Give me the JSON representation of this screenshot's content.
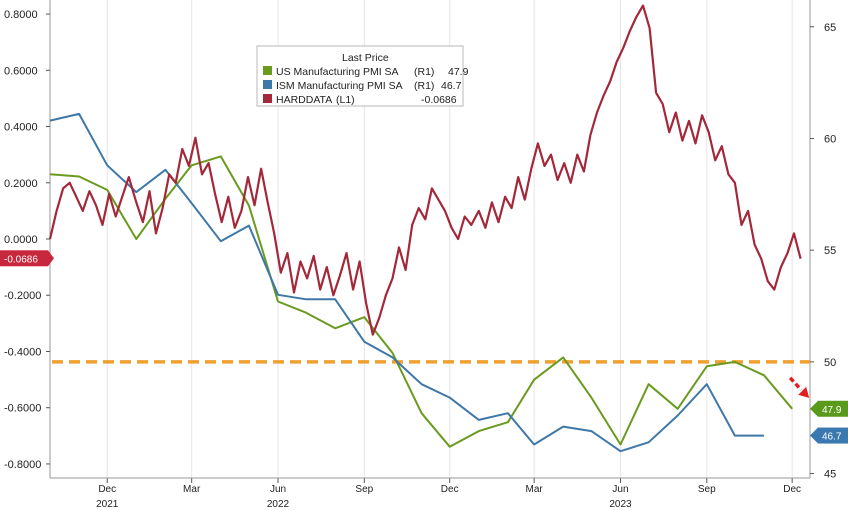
{
  "chart_data": {
    "type": "line",
    "legend": {
      "title": "Last Price",
      "placement": "top-center",
      "entries": [
        {
          "label": "US Manufacturing PMI SA",
          "axis": "(R1)",
          "value": "47.9",
          "color": "#6a9a1f"
        },
        {
          "label": "ISM Manufacturing PMI SA",
          "axis": "(R1)",
          "value": "46.7",
          "color": "#3f78a8"
        },
        {
          "label": "HARDDATA",
          "axis": "(L1)",
          "value": "-0.0686",
          "color": "#a3283a"
        }
      ]
    },
    "left_axis": {
      "ylim": [
        -0.85,
        0.85
      ],
      "ticks": [
        "0.8000",
        "0.6000",
        "0.4000",
        "0.2000",
        "0.0000",
        "-0.2000",
        "-0.4000",
        "-0.6000",
        "-0.8000"
      ],
      "tick_values": [
        0.8,
        0.6,
        0.4,
        0.2,
        0.0,
        -0.2,
        -0.4,
        -0.6,
        -0.8
      ]
    },
    "right_axis": {
      "ylim": [
        44.8,
        66.2
      ],
      "ticks": [
        "65",
        "60",
        "55",
        "50",
        "45"
      ],
      "tick_values": [
        65,
        60,
        55,
        50,
        45
      ]
    },
    "x_axis": {
      "xlim": [
        "2021-10-01",
        "2023-12-20"
      ],
      "month_ticks": [
        {
          "date": "2021-12-01",
          "label": "Dec"
        },
        {
          "date": "2022-03-01",
          "label": "Mar"
        },
        {
          "date": "2022-06-01",
          "label": "Jun"
        },
        {
          "date": "2022-09-01",
          "label": "Sep"
        },
        {
          "date": "2022-12-01",
          "label": "Dec"
        },
        {
          "date": "2023-03-01",
          "label": "Mar"
        },
        {
          "date": "2023-06-01",
          "label": "Jun"
        },
        {
          "date": "2023-09-01",
          "label": "Sep"
        },
        {
          "date": "2023-12-01",
          "label": "Dec"
        }
      ],
      "year_labels": [
        {
          "date": "2021-12-01",
          "label": "2021"
        },
        {
          "date": "2022-06-01",
          "label": "2022"
        },
        {
          "date": "2023-06-01",
          "label": "2023"
        }
      ]
    },
    "reference_line": {
      "axis": "right",
      "value": 50,
      "color": "#f0a030",
      "style": "dashed"
    },
    "trend_arrow": {
      "color": "#e02020",
      "direction": "down"
    },
    "value_tags": [
      {
        "axis": "left",
        "value": -0.0686,
        "text": "-0.0686",
        "color": "#c8283c"
      },
      {
        "axis": "right",
        "value": 47.9,
        "text": "47.9",
        "color": "#5a9a1a"
      },
      {
        "axis": "right",
        "value": 46.7,
        "text": "46.7",
        "color": "#3a78b0"
      }
    ],
    "grid": {
      "vertical": true,
      "horizontal": false
    },
    "series": [
      {
        "name": "US Manufacturing PMI SA",
        "axis": "right",
        "color": "#6a9a1f",
        "points": [
          [
            "2021-10-01",
            58.4
          ],
          [
            "2021-11-01",
            58.3
          ],
          [
            "2021-12-01",
            57.7
          ],
          [
            "2022-01-01",
            55.5
          ],
          [
            "2022-02-01",
            57.3
          ],
          [
            "2022-03-01",
            58.8
          ],
          [
            "2022-04-01",
            59.2
          ],
          [
            "2022-05-01",
            57.0
          ],
          [
            "2022-06-01",
            52.7
          ],
          [
            "2022-07-01",
            52.2
          ],
          [
            "2022-08-01",
            51.5
          ],
          [
            "2022-09-01",
            52.0
          ],
          [
            "2022-10-01",
            50.4
          ],
          [
            "2022-11-01",
            47.7
          ],
          [
            "2022-12-01",
            46.2
          ],
          [
            "2023-01-01",
            46.9
          ],
          [
            "2023-02-01",
            47.3
          ],
          [
            "2023-03-01",
            49.2
          ],
          [
            "2023-04-01",
            50.2
          ],
          [
            "2023-05-01",
            48.4
          ],
          [
            "2023-06-01",
            46.3
          ],
          [
            "2023-07-01",
            49.0
          ],
          [
            "2023-08-01",
            47.9
          ],
          [
            "2023-09-01",
            49.8
          ],
          [
            "2023-10-01",
            50.0
          ],
          [
            "2023-11-01",
            49.4
          ],
          [
            "2023-12-01",
            47.9
          ]
        ]
      },
      {
        "name": "ISM Manufacturing PMI SA",
        "axis": "right",
        "color": "#3f78a8",
        "points": [
          [
            "2021-10-01",
            60.8
          ],
          [
            "2021-11-01",
            61.1
          ],
          [
            "2021-12-01",
            58.8
          ],
          [
            "2022-01-01",
            57.6
          ],
          [
            "2022-02-01",
            58.6
          ],
          [
            "2022-03-01",
            57.1
          ],
          [
            "2022-04-01",
            55.4
          ],
          [
            "2022-05-01",
            56.1
          ],
          [
            "2022-06-01",
            53.0
          ],
          [
            "2022-07-01",
            52.8
          ],
          [
            "2022-08-01",
            52.8
          ],
          [
            "2022-09-01",
            50.9
          ],
          [
            "2022-10-01",
            50.2
          ],
          [
            "2022-11-01",
            49.0
          ],
          [
            "2022-12-01",
            48.4
          ],
          [
            "2023-01-01",
            47.4
          ],
          [
            "2023-02-01",
            47.7
          ],
          [
            "2023-03-01",
            46.3
          ],
          [
            "2023-04-01",
            47.1
          ],
          [
            "2023-05-01",
            46.9
          ],
          [
            "2023-06-01",
            46.0
          ],
          [
            "2023-07-01",
            46.4
          ],
          [
            "2023-08-01",
            47.6
          ],
          [
            "2023-09-01",
            49.0
          ],
          [
            "2023-10-01",
            46.7
          ],
          [
            "2023-11-01",
            46.7
          ]
        ]
      },
      {
        "name": "HARDDATA",
        "axis": "left",
        "color": "#a3283a",
        "points": [
          [
            "2021-10-01",
            0.0
          ],
          [
            "2021-10-08",
            0.1
          ],
          [
            "2021-10-15",
            0.18
          ],
          [
            "2021-10-22",
            0.2
          ],
          [
            "2021-10-29",
            0.15
          ],
          [
            "2021-11-05",
            0.1
          ],
          [
            "2021-11-12",
            0.17
          ],
          [
            "2021-11-19",
            0.12
          ],
          [
            "2021-11-26",
            0.05
          ],
          [
            "2021-12-03",
            0.16
          ],
          [
            "2021-12-10",
            0.08
          ],
          [
            "2021-12-17",
            0.15
          ],
          [
            "2021-12-24",
            0.22
          ],
          [
            "2022-01-01",
            0.13
          ],
          [
            "2022-01-08",
            0.06
          ],
          [
            "2022-01-15",
            0.17
          ],
          [
            "2022-01-22",
            0.02
          ],
          [
            "2022-01-29",
            0.11
          ],
          [
            "2022-02-05",
            0.23
          ],
          [
            "2022-02-12",
            0.2
          ],
          [
            "2022-02-19",
            0.32
          ],
          [
            "2022-02-26",
            0.26
          ],
          [
            "2022-03-05",
            0.36
          ],
          [
            "2022-03-12",
            0.23
          ],
          [
            "2022-03-19",
            0.27
          ],
          [
            "2022-03-26",
            0.16
          ],
          [
            "2022-04-02",
            0.06
          ],
          [
            "2022-04-09",
            0.15
          ],
          [
            "2022-04-16",
            0.04
          ],
          [
            "2022-04-23",
            0.1
          ],
          [
            "2022-04-30",
            0.22
          ],
          [
            "2022-05-07",
            0.12
          ],
          [
            "2022-05-14",
            0.25
          ],
          [
            "2022-05-21",
            0.13
          ],
          [
            "2022-05-28",
            0.02
          ],
          [
            "2022-06-04",
            -0.12
          ],
          [
            "2022-06-11",
            -0.05
          ],
          [
            "2022-06-18",
            -0.19
          ],
          [
            "2022-06-25",
            -0.08
          ],
          [
            "2022-07-02",
            -0.14
          ],
          [
            "2022-07-09",
            -0.06
          ],
          [
            "2022-07-16",
            -0.18
          ],
          [
            "2022-07-23",
            -0.1
          ],
          [
            "2022-07-30",
            -0.2
          ],
          [
            "2022-08-06",
            -0.13
          ],
          [
            "2022-08-13",
            -0.05
          ],
          [
            "2022-08-20",
            -0.18
          ],
          [
            "2022-08-27",
            -0.08
          ],
          [
            "2022-09-03",
            -0.23
          ],
          [
            "2022-09-10",
            -0.34
          ],
          [
            "2022-09-17",
            -0.28
          ],
          [
            "2022-09-24",
            -0.2
          ],
          [
            "2022-10-01",
            -0.14
          ],
          [
            "2022-10-08",
            -0.03
          ],
          [
            "2022-10-15",
            -0.11
          ],
          [
            "2022-10-22",
            0.05
          ],
          [
            "2022-10-29",
            0.11
          ],
          [
            "2022-11-05",
            0.07
          ],
          [
            "2022-11-12",
            0.18
          ],
          [
            "2022-11-19",
            0.14
          ],
          [
            "2022-11-26",
            0.1
          ],
          [
            "2022-12-03",
            0.04
          ],
          [
            "2022-12-10",
            0.0
          ],
          [
            "2022-12-17",
            0.08
          ],
          [
            "2022-12-24",
            0.05
          ],
          [
            "2023-01-01",
            0.1
          ],
          [
            "2023-01-08",
            0.04
          ],
          [
            "2023-01-15",
            0.13
          ],
          [
            "2023-01-22",
            0.06
          ],
          [
            "2023-01-29",
            0.15
          ],
          [
            "2023-02-05",
            0.11
          ],
          [
            "2023-02-12",
            0.22
          ],
          [
            "2023-02-19",
            0.14
          ],
          [
            "2023-02-26",
            0.25
          ],
          [
            "2023-03-05",
            0.34
          ],
          [
            "2023-03-12",
            0.26
          ],
          [
            "2023-03-19",
            0.3
          ],
          [
            "2023-03-26",
            0.21
          ],
          [
            "2023-04-02",
            0.27
          ],
          [
            "2023-04-09",
            0.2
          ],
          [
            "2023-04-16",
            0.3
          ],
          [
            "2023-04-23",
            0.24
          ],
          [
            "2023-04-30",
            0.37
          ],
          [
            "2023-05-07",
            0.45
          ],
          [
            "2023-05-14",
            0.51
          ],
          [
            "2023-05-21",
            0.56
          ],
          [
            "2023-05-28",
            0.63
          ],
          [
            "2023-06-04",
            0.68
          ],
          [
            "2023-06-11",
            0.74
          ],
          [
            "2023-06-18",
            0.79
          ],
          [
            "2023-06-25",
            0.83
          ],
          [
            "2023-07-02",
            0.75
          ],
          [
            "2023-07-09",
            0.52
          ],
          [
            "2023-07-16",
            0.48
          ],
          [
            "2023-07-23",
            0.38
          ],
          [
            "2023-07-30",
            0.45
          ],
          [
            "2023-08-06",
            0.35
          ],
          [
            "2023-08-13",
            0.42
          ],
          [
            "2023-08-20",
            0.34
          ],
          [
            "2023-08-27",
            0.44
          ],
          [
            "2023-09-03",
            0.38
          ],
          [
            "2023-09-10",
            0.28
          ],
          [
            "2023-09-17",
            0.33
          ],
          [
            "2023-09-24",
            0.23
          ],
          [
            "2023-10-01",
            0.2
          ],
          [
            "2023-10-08",
            0.05
          ],
          [
            "2023-10-15",
            0.1
          ],
          [
            "2023-10-22",
            -0.02
          ],
          [
            "2023-10-29",
            -0.07
          ],
          [
            "2023-11-05",
            -0.15
          ],
          [
            "2023-11-12",
            -0.18
          ],
          [
            "2023-11-19",
            -0.1
          ],
          [
            "2023-11-26",
            -0.05
          ],
          [
            "2023-12-03",
            0.02
          ],
          [
            "2023-12-10",
            -0.07
          ]
        ]
      }
    ]
  }
}
